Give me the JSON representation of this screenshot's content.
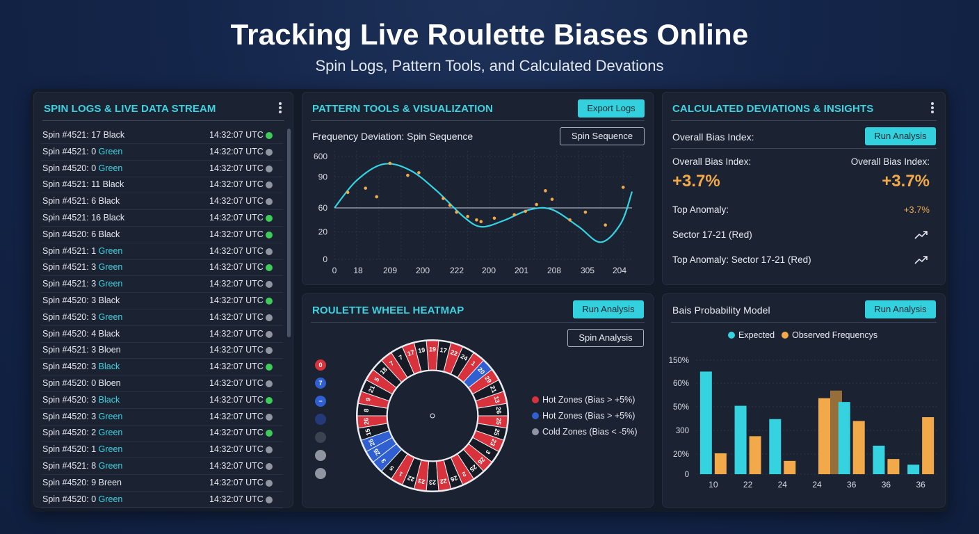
{
  "header": {
    "title": "Tracking Live Roulette Biases Online",
    "subtitle": "Spin Logs, Pattern Tools, and Calculated Devations"
  },
  "spin_logs": {
    "title": "SPIN LOGS & LIVE DATA STREAM",
    "rows": [
      {
        "prefix": "Spin #4521: 17 ",
        "color": "Black",
        "time": "14:32:07 UTC",
        "status": "green"
      },
      {
        "prefix": "Spin #4521: 0 ",
        "color": "Green",
        "time": "14:32:07 UTC",
        "status": "grey"
      },
      {
        "prefix": "Spin #4520: 0 ",
        "color": "Green",
        "time": "14:32:07 UTC",
        "status": "grey"
      },
      {
        "prefix": "Spin #4521: 11 ",
        "color": "Black",
        "time": "14:32:07 UTC",
        "status": "grey"
      },
      {
        "prefix": "Spin #4521: 6 ",
        "color": "Black",
        "time": "14:32:07 UTC",
        "status": "grey"
      },
      {
        "prefix": "Spin #4521: 16 ",
        "color": "Black",
        "time": "14:32:07 UTC",
        "status": "green"
      },
      {
        "prefix": "Spin #4520: 6 ",
        "color": "Black",
        "time": "14:32:07 UTC",
        "status": "green"
      },
      {
        "prefix": "Spin #4521: 1 ",
        "color": "Green",
        "time": "14:32:07 UTC",
        "status": "grey"
      },
      {
        "prefix": "Spin #4521: 3 ",
        "color": "Green",
        "time": "14:32:07 UTC",
        "status": "green"
      },
      {
        "prefix": "Spin #4521: 3 ",
        "color": "Green",
        "time": "14:32:07 UTC",
        "status": "grey"
      },
      {
        "prefix": "Spin #4520: 3 ",
        "color": "Black",
        "time": "14:32:07 UTC",
        "status": "green"
      },
      {
        "prefix": "Spin #4520: 3 ",
        "color": "Green",
        "time": "14:32:07 UTC",
        "status": "grey"
      },
      {
        "prefix": "Spin #4520: 4 ",
        "color": "Black",
        "time": "14:32:07 UTC",
        "status": "grey"
      },
      {
        "prefix": "Spin #4521: 3 ",
        "color": "Bloen",
        "time": "14:32:07 UTC",
        "status": "grey"
      },
      {
        "prefix": "Spin #4520: 3 ",
        "color": "Black",
        "time": "14:32:07 UTC",
        "status": "green"
      },
      {
        "prefix": "Spin #4520: 0 ",
        "color": "Bloen",
        "time": "14:32:07 UTC",
        "status": "grey"
      },
      {
        "prefix": "Spin #4520: 3 ",
        "color": "Black",
        "time": "14:32:07 UTC",
        "status": "green"
      },
      {
        "prefix": "Spin #4520: 3 ",
        "color": "Green",
        "time": "14:32:07 UTC",
        "status": "grey"
      },
      {
        "prefix": "Spin #4520: 2 ",
        "color": "Green",
        "time": "14:32:07 UTC",
        "status": "green"
      },
      {
        "prefix": "Spin #4520: 1 ",
        "color": "Green",
        "time": "14:32:07 UTC",
        "status": "grey"
      },
      {
        "prefix": "Spin #4521: 8 ",
        "color": "Green",
        "time": "14:32:07 UTC",
        "status": "grey"
      },
      {
        "prefix": "Spin #4520: 9 ",
        "color": "Breen",
        "time": "14:32:07 UTC",
        "status": "grey"
      },
      {
        "prefix": "Spin #4520: 0 ",
        "color": "Green",
        "time": "14:32:07 UTC",
        "status": "grey"
      }
    ]
  },
  "pattern": {
    "title": "PATTERN TOOLS & VISUALIZATION",
    "export_label": "Export Logs",
    "chart_title": "Frequency Deviation: Spin Sequence",
    "sequence_label": "Spin Sequence",
    "chart_data": {
      "type": "scatter",
      "y_ticks": [
        "600",
        "90",
        "60",
        "20",
        "0"
      ],
      "x_ticks": [
        "0",
        "18",
        "209",
        "200",
        "222",
        "200",
        "201",
        "208",
        "305",
        "204"
      ],
      "points": [
        [
          0.6,
          78
        ],
        [
          1.4,
          83
        ],
        [
          1.9,
          73
        ],
        [
          2.5,
          112
        ],
        [
          3.3,
          98
        ],
        [
          3.8,
          101
        ],
        [
          4.9,
          71
        ],
        [
          5.2,
          63
        ],
        [
          5.5,
          55
        ],
        [
          6.0,
          50
        ],
        [
          6.4,
          46
        ],
        [
          6.6,
          44
        ],
        [
          7.2,
          48
        ],
        [
          8.1,
          52
        ],
        [
          8.6,
          56
        ],
        [
          9.1,
          64
        ],
        [
          9.5,
          80
        ],
        [
          9.8,
          70
        ],
        [
          10.6,
          46
        ],
        [
          11.3,
          55
        ],
        [
          12.2,
          40
        ],
        [
          13.0,
          84
        ]
      ],
      "curve": [
        [
          0.0,
          60
        ],
        [
          1.0,
          92
        ],
        [
          2.2,
          111
        ],
        [
          3.4,
          104
        ],
        [
          4.6,
          80
        ],
        [
          5.8,
          50
        ],
        [
          6.6,
          38
        ],
        [
          7.6,
          45
        ],
        [
          8.8,
          58
        ],
        [
          9.8,
          58
        ],
        [
          11.0,
          38
        ],
        [
          12.0,
          20
        ],
        [
          12.9,
          42
        ],
        [
          13.4,
          79
        ]
      ],
      "reference_y": 60
    }
  },
  "deviations": {
    "title": "CALCULATED DEVIATIONS & INSIGHTS",
    "bias_label": "Overall Bias Index:",
    "run_label": "Run Analysis",
    "left_label": "Overall Bias Index:",
    "left_value": "+3.7%",
    "right_label": "Overall Bias Index:",
    "right_value": "+3.7%",
    "anomaly_label": "Top Anomaly:",
    "anomaly_value": "+3.7%",
    "sector_label": "Sector 17-21 (Red)",
    "sector_full": "Top Anomaly: Sector 17-21 (Red)",
    "accent": "#f2a94a"
  },
  "heatmap": {
    "title": "ROULETTE WHEEL HEATMAP",
    "run_label": "Run Analysis",
    "spin_label": "Spin Analysis",
    "side_dots": [
      "0",
      "7",
      "−",
      "",
      "",
      "",
      ""
    ],
    "legend": [
      "Hot Zones (Bias > +5%)",
      "Hot Zones (Bias > +5%)",
      "Cold Zones (Bias < -5%)"
    ],
    "colors": {
      "red": "#d8333d",
      "blue": "#2f5fd0",
      "black": "#151a24",
      "grey": "#8f96a2"
    },
    "wheel_numbers": [
      "19",
      "17",
      "22",
      "24",
      "1",
      "20",
      "29",
      "21",
      "13",
      "26",
      "25",
      "25",
      "23",
      "3",
      "26",
      "25",
      "2",
      "26",
      "22",
      "23",
      "23",
      "22",
      "1",
      "5",
      "3",
      "26",
      "26",
      "15",
      "26",
      "8",
      "9",
      "21",
      "5",
      "18",
      "7",
      "7",
      "17",
      "19"
    ]
  },
  "probability": {
    "title": "Bais Probability Model",
    "run_label": "Run Analysis",
    "chart_data": {
      "type": "bar",
      "categories": [
        "10",
        "22",
        "24",
        "24",
        "36",
        "36",
        "36"
      ],
      "y_ticks": [
        "150%",
        "60%",
        "50%",
        "300",
        "20%",
        "0"
      ],
      "series": [
        {
          "name": "Expected",
          "color": "#35d2e0",
          "values": [
            5.4,
            3.6,
            2.9,
            0,
            3.8,
            1.5,
            0.5
          ]
        },
        {
          "name": "Observed Frequencys",
          "color": "#f2a94a",
          "values": [
            1.1,
            2.0,
            0.7,
            4.0,
            2.8,
            0.8,
            3.0
          ]
        }
      ],
      "extra_bar": {
        "category_index": 3,
        "value": 4.4,
        "color": "#c98f3c"
      }
    }
  }
}
